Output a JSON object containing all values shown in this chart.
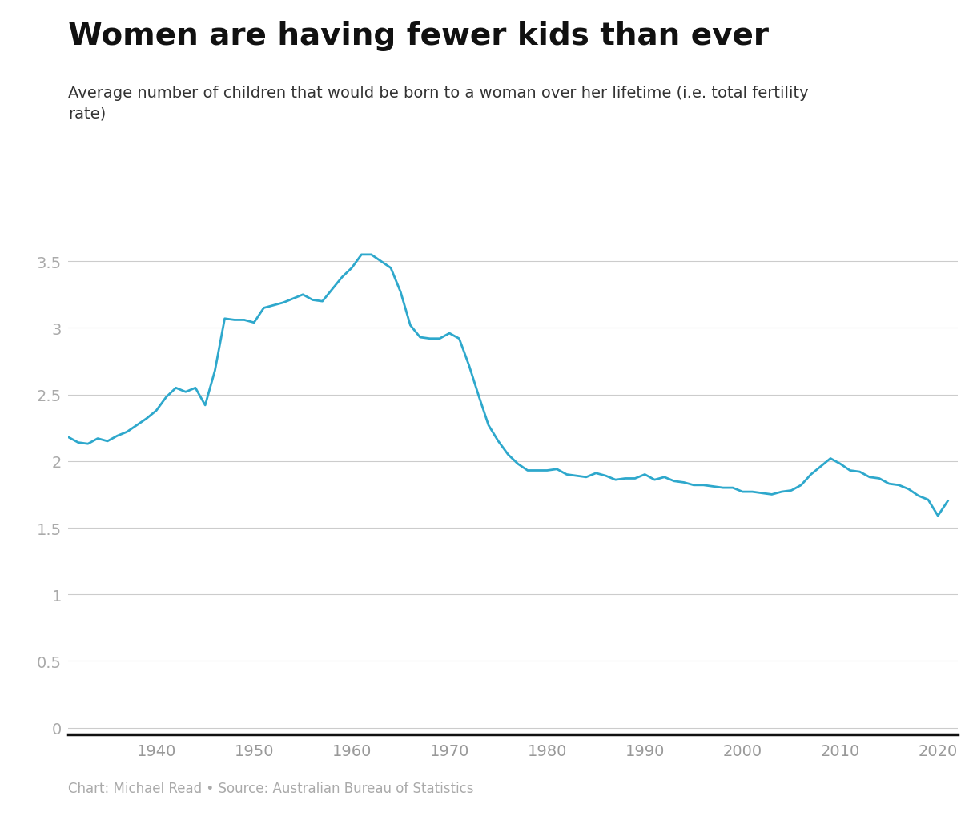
{
  "title": "Women are having fewer kids than ever",
  "subtitle": "Average number of children that would be born to a woman over her lifetime (i.e. total fertility\nrate)",
  "footer": "Chart: Michael Read • Source: Australian Bureau of Statistics",
  "line_color": "#2ea8cc",
  "background_color": "#ffffff",
  "title_fontsize": 28,
  "subtitle_fontsize": 14,
  "footer_fontsize": 12,
  "tick_fontsize": 14,
  "ylim": [
    -0.05,
    3.75
  ],
  "yticks": [
    0,
    0.5,
    1,
    1.5,
    2,
    2.5,
    3,
    3.5
  ],
  "xlim": [
    1931,
    2022
  ],
  "xticks": [
    1940,
    1950,
    1960,
    1970,
    1980,
    1990,
    2000,
    2010,
    2020
  ],
  "years": [
    1931,
    1932,
    1933,
    1934,
    1935,
    1936,
    1937,
    1938,
    1939,
    1940,
    1941,
    1942,
    1943,
    1944,
    1945,
    1946,
    1947,
    1948,
    1949,
    1950,
    1951,
    1952,
    1953,
    1954,
    1955,
    1956,
    1957,
    1958,
    1959,
    1960,
    1961,
    1962,
    1963,
    1964,
    1965,
    1966,
    1967,
    1968,
    1969,
    1970,
    1971,
    1972,
    1973,
    1974,
    1975,
    1976,
    1977,
    1978,
    1979,
    1980,
    1981,
    1982,
    1983,
    1984,
    1985,
    1986,
    1987,
    1988,
    1989,
    1990,
    1991,
    1992,
    1993,
    1994,
    1995,
    1996,
    1997,
    1998,
    1999,
    2000,
    2001,
    2002,
    2003,
    2004,
    2005,
    2006,
    2007,
    2008,
    2009,
    2010,
    2011,
    2012,
    2013,
    2014,
    2015,
    2016,
    2017,
    2018,
    2019,
    2020,
    2021
  ],
  "values": [
    2.18,
    2.14,
    2.13,
    2.17,
    2.15,
    2.19,
    2.22,
    2.27,
    2.32,
    2.38,
    2.48,
    2.55,
    2.52,
    2.55,
    2.42,
    2.68,
    3.07,
    3.06,
    3.06,
    3.04,
    3.15,
    3.17,
    3.19,
    3.22,
    3.25,
    3.21,
    3.2,
    3.29,
    3.38,
    3.45,
    3.55,
    3.55,
    3.5,
    3.45,
    3.27,
    3.02,
    2.93,
    2.92,
    2.92,
    2.96,
    2.92,
    2.72,
    2.49,
    2.27,
    2.15,
    2.05,
    1.98,
    1.93,
    1.93,
    1.93,
    1.94,
    1.9,
    1.89,
    1.88,
    1.91,
    1.89,
    1.86,
    1.87,
    1.87,
    1.9,
    1.86,
    1.88,
    1.85,
    1.84,
    1.82,
    1.82,
    1.81,
    1.8,
    1.8,
    1.77,
    1.77,
    1.76,
    1.75,
    1.77,
    1.78,
    1.82,
    1.9,
    1.96,
    2.02,
    1.98,
    1.93,
    1.92,
    1.88,
    1.87,
    1.83,
    1.82,
    1.79,
    1.74,
    1.71,
    1.59,
    1.7
  ]
}
